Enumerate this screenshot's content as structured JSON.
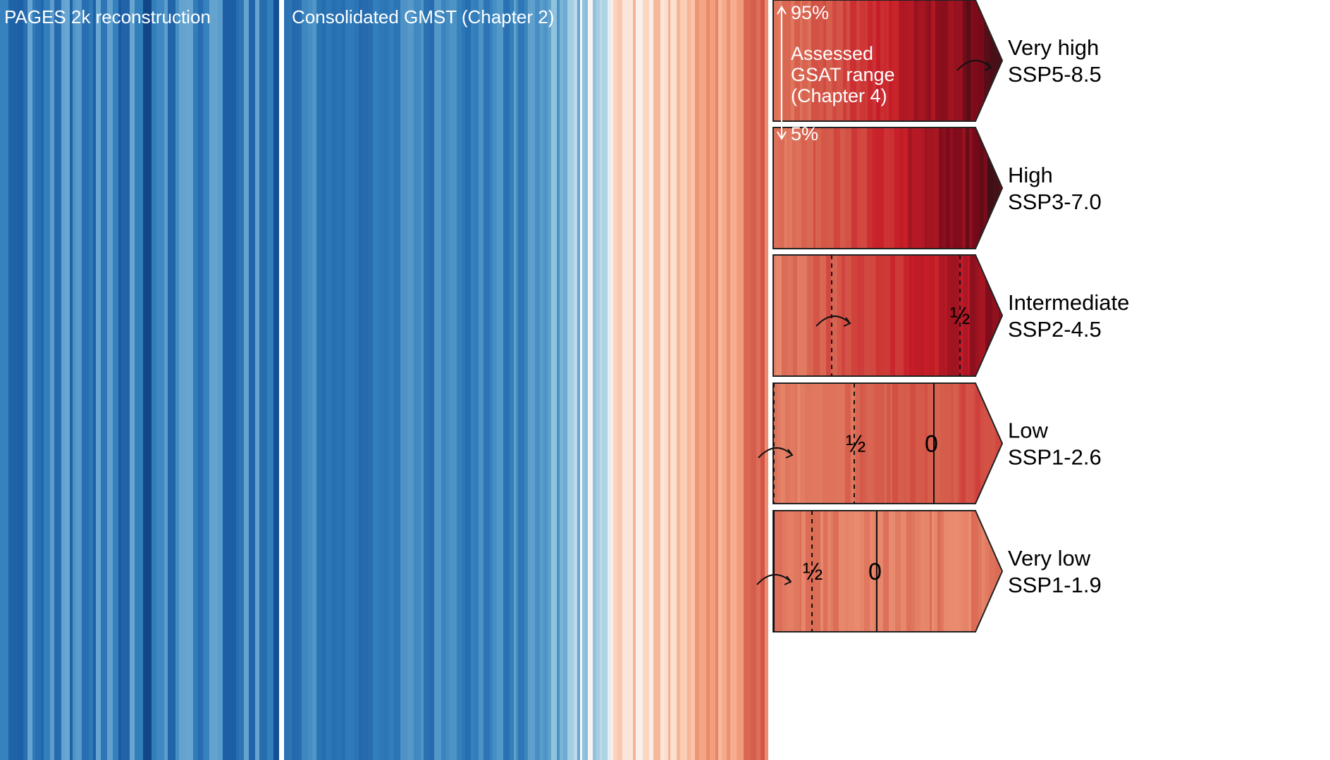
{
  "panels": {
    "pages2k": {
      "label": "PAGES 2k reconstruction"
    },
    "gmst": {
      "label": "Consolidated GMST (Chapter 2)"
    }
  },
  "annotation": {
    "upper": "95%",
    "lower": "5%",
    "lines": [
      "Assessed",
      "GSAT range",
      "(Chapter 4)"
    ]
  },
  "scenarios": [
    {
      "id": "ssp585",
      "level": "Very high",
      "name": "SSP5-8.5",
      "markers": []
    },
    {
      "id": "ssp370",
      "level": "High",
      "name": "SSP3-7.0",
      "markers": []
    },
    {
      "id": "ssp245",
      "level": "Intermediate",
      "name": "SSP2-4.5",
      "markers": [
        {
          "label": "½"
        }
      ]
    },
    {
      "id": "ssp126",
      "level": "Low",
      "name": "SSP1-2.6",
      "markers": [
        {
          "label": "½"
        },
        {
          "label": "0"
        }
      ]
    },
    {
      "id": "ssp119",
      "level": "Very low",
      "name": "SSP1-1.9",
      "markers": [
        {
          "label": "½"
        },
        {
          "label": "0"
        }
      ]
    }
  ],
  "colors": {
    "cold_dark": "#08306b",
    "cold": "#2166ac",
    "cold_light": "#d1e5f0",
    "neutral": "#f7f7f7",
    "warm_light": "#fddbc7",
    "warm": "#d6604d",
    "warm_dark": "#67001f",
    "hottest": "#1a1a1a"
  },
  "chart_data": {
    "type": "heatmap",
    "title": "",
    "series": [
      {
        "name": "PAGES 2k reconstruction",
        "pattern": "all blue stripes, dark to light"
      },
      {
        "name": "Consolidated GMST (Chapter 2)",
        "pattern": "blue stripes turning to light red then red"
      },
      {
        "name": "SSP5-8.5",
        "pattern": "red to near-black"
      },
      {
        "name": "SSP3-7.0",
        "pattern": "red to near-black"
      },
      {
        "name": "SSP2-4.5",
        "pattern": "red to dark red"
      },
      {
        "name": "SSP1-2.6",
        "pattern": "red, fading lighter"
      },
      {
        "name": "SSP1-1.9",
        "pattern": "red, fading lighter"
      }
    ],
    "annotations": [
      "95%",
      "5%",
      "Assessed GSAT range (Chapter 4)",
      "½",
      "0"
    ],
    "legend": "none"
  }
}
